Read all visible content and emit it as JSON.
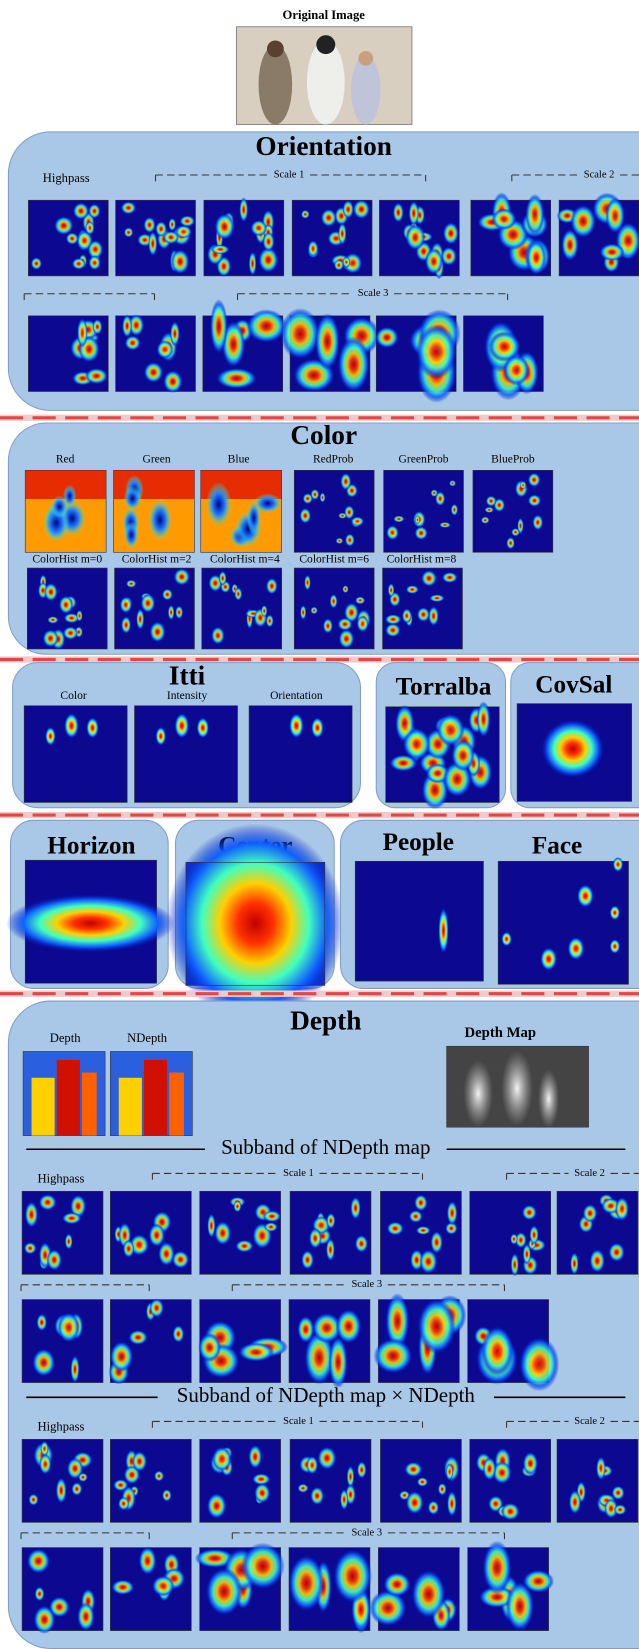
{
  "original_image": {
    "title": "Original Image"
  },
  "orientation": {
    "title": "Orientation",
    "highpass": "Highpass",
    "scales": [
      "Scale 1",
      "Scale 2",
      "Scale 3"
    ]
  },
  "color": {
    "title": "Color",
    "labels": [
      "Red",
      "Green",
      "Blue",
      "RedProb",
      "GreenProb",
      "BlueProb",
      "ColorHist m=0",
      "ColorHist m=2",
      "ColorHist m=4",
      "ColorHist m=6",
      "ColorHist m=8"
    ]
  },
  "itti": {
    "title": "Itti",
    "labels": [
      "Color",
      "Intensity",
      "Orientation"
    ]
  },
  "torralba": {
    "title": "Torralba"
  },
  "covsal": {
    "title": "CovSal"
  },
  "horizon": {
    "title": "Horizon"
  },
  "center": {
    "title": "Center"
  },
  "people": {
    "title": "People"
  },
  "face": {
    "title": "Face"
  },
  "depth": {
    "title": "Depth",
    "labels": [
      "Depth",
      "NDepth"
    ],
    "depth_map": "Depth Map",
    "subbands": [
      {
        "title": "Subband of NDepth map",
        "highpass": "Highpass",
        "scales": [
          "Scale 1",
          "Scale 2",
          "Scale 3"
        ]
      },
      {
        "title": "Subband of NDepth map × NDepth",
        "highpass": "Highpass",
        "scales": [
          "Scale 1",
          "Scale 2",
          "Scale 3"
        ]
      }
    ]
  }
}
